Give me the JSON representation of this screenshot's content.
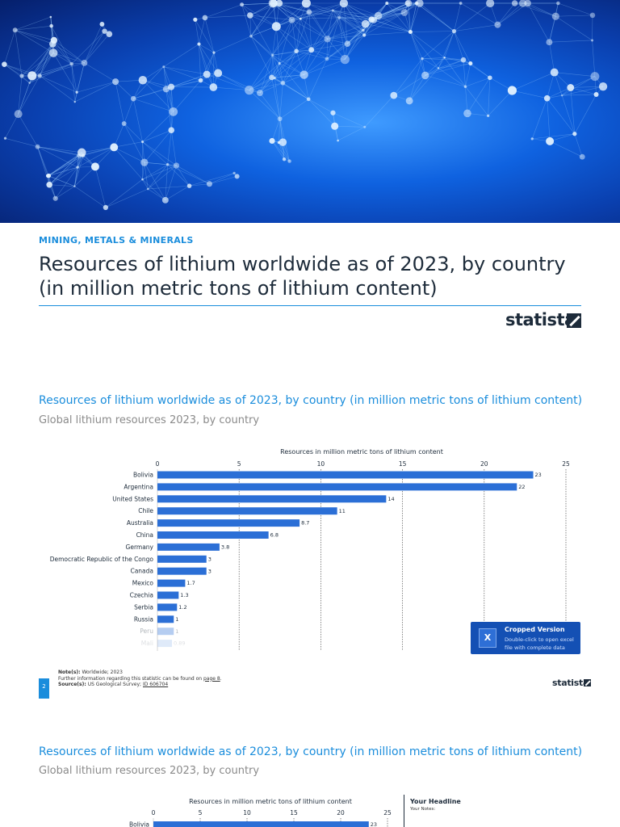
{
  "header": {
    "category": "MINING, METALS & MINERALS",
    "title": "Resources of lithium worldwide as of 2023, by country (in million metric tons of lithium content)",
    "brand": "statista"
  },
  "section1": {
    "title": "Resources of lithium worldwide as of 2023, by country (in million metric tons of lithium content)",
    "subtitle": "Global lithium resources 2023, by country"
  },
  "cropped_badge": {
    "title": "Cropped Version",
    "description": "Double-click to open excel file with complete data",
    "icon": "excel-icon",
    "color": "#1450b4"
  },
  "footer": {
    "notes_label": "Note(s):",
    "notes_text": "Worldwide; 2023",
    "info_text": "Further information regarding this statistic can be found on",
    "info_link": "page 8",
    "sources_label": "Source(s):",
    "sources_text": "US Geological Survey;",
    "sources_link": "ID 606704",
    "page_number": "2",
    "brand": "statista"
  },
  "section2": {
    "title": "Resources of lithium worldwide as of 2023, by country (in million metric tons of lithium content)",
    "subtitle": "Global lithium resources 2023, by country",
    "side_headline": "Your Headline",
    "side_notes": "Your Notes:"
  },
  "colors": {
    "accent": "#1a8ddc",
    "bar": "#2b6fd6",
    "text": "#1d2b3a"
  },
  "chart_data": [
    {
      "type": "bar",
      "orientation": "horizontal",
      "title": "Resources in million metric tons of lithium content",
      "categories": [
        "Bolivia",
        "Argentina",
        "United States",
        "Chile",
        "Australia",
        "China",
        "Germany",
        "Democratic Republic of the Congo",
        "Canada",
        "Mexico",
        "Czechia",
        "Serbia",
        "Russia",
        "Peru",
        "Mali"
      ],
      "values": [
        23,
        22,
        14,
        11,
        8.7,
        6.8,
        3.8,
        3,
        3,
        1.7,
        1.3,
        1.2,
        1,
        1,
        0.89
      ],
      "value_labels": [
        "23",
        "22",
        "14",
        "11",
        "8.7",
        "6.8",
        "3.8",
        "3",
        "3",
        "1.7",
        "1.3",
        "1.2",
        "1",
        "1",
        "0.89"
      ],
      "faded_categories": [
        "Peru",
        "Mali"
      ],
      "xlim": [
        0,
        25
      ],
      "ticks": [
        0,
        5,
        10,
        15,
        20,
        25
      ],
      "grid": true
    },
    {
      "type": "bar",
      "orientation": "horizontal",
      "title": "Resources in million metric tons of lithium content",
      "categories": [
        "Bolivia"
      ],
      "values": [
        23
      ],
      "value_labels": [
        "23"
      ],
      "xlim": [
        0,
        25
      ],
      "ticks": [
        0,
        5,
        10,
        15,
        20,
        25
      ],
      "grid": true
    }
  ]
}
